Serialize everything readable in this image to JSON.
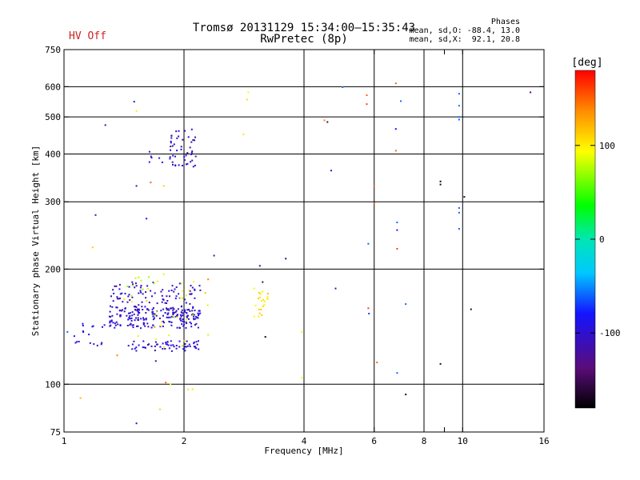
{
  "header": {
    "title_line1": "Tromsø 20131129 15:34:00–15:35:43",
    "title_line2": "RwPretec (8p)",
    "hv_status": "HV Off",
    "phases_title": "Phases",
    "phases_o": "mean, sd,O: -88.4, 13.0",
    "phases_x": "mean, sd,X:  92.1, 20.8"
  },
  "colors": {
    "hv_status": "#cc2222",
    "grid": "#000000"
  },
  "chart_data": {
    "type": "scatter",
    "xlabel": "Frequency [MHz]",
    "ylabel": "Stationary phase Virtual Height [km]",
    "xscale": "log",
    "yscale": "log",
    "xlim": [
      1,
      16
    ],
    "ylim": [
      75,
      750
    ],
    "xticks": [
      1,
      2,
      4,
      6,
      8,
      9,
      10,
      16
    ],
    "xtick_labels": [
      "1",
      "2",
      "4",
      "6",
      "8",
      "",
      "10",
      "16"
    ],
    "yticks": [
      75,
      100,
      200,
      300,
      400,
      500,
      600,
      750
    ],
    "grid_x": [
      2,
      4,
      6,
      8,
      10
    ],
    "grid_y": [
      100,
      200,
      300,
      400,
      500,
      600
    ],
    "colorbar": {
      "label": "[deg]",
      "range": [
        -180,
        180
      ],
      "ticks": [
        100,
        0,
        -100
      ]
    },
    "clusters": [
      {
        "x_range": [
          1.3,
          2.2
        ],
        "y_range": [
          140,
          160
        ],
        "count": 180,
        "phase": -100,
        "spread": 15
      },
      {
        "x_range": [
          1.3,
          2.2
        ],
        "y_range": [
          150,
          185
        ],
        "count": 120,
        "phase": -105,
        "spread": 15
      },
      {
        "x_range": [
          1.45,
          2.2
        ],
        "y_range": [
          122,
          130
        ],
        "count": 60,
        "phase": -100,
        "spread": 12
      },
      {
        "x_range": [
          1.05,
          1.3
        ],
        "y_range": [
          118,
          145
        ],
        "count": 18,
        "phase": -95,
        "spread": 10
      },
      {
        "x_range": [
          1.85,
          2.15
        ],
        "y_range": [
          370,
          470
        ],
        "count": 45,
        "phase": -105,
        "spread": 15
      },
      {
        "x_range": [
          1.6,
          1.9
        ],
        "y_range": [
          380,
          410
        ],
        "count": 10,
        "phase": -100,
        "spread": 10
      },
      {
        "x_range": [
          1.4,
          2.3
        ],
        "y_range": [
          125,
          195
        ],
        "count": 40,
        "phase": 90,
        "spread": 25
      },
      {
        "x_range": [
          3.0,
          3.3
        ],
        "y_range": [
          150,
          175
        ],
        "count": 22,
        "phase": 105,
        "spread": 15
      }
    ],
    "points": [
      {
        "x": 1.02,
        "y": 137,
        "phase": -60
      },
      {
        "x": 1.1,
        "y": 92,
        "phase": 120
      },
      {
        "x": 1.18,
        "y": 228,
        "phase": 110
      },
      {
        "x": 1.2,
        "y": 277,
        "phase": -100
      },
      {
        "x": 1.27,
        "y": 476,
        "phase": -105
      },
      {
        "x": 1.36,
        "y": 119,
        "phase": 140
      },
      {
        "x": 1.5,
        "y": 548,
        "phase": -100
      },
      {
        "x": 1.52,
        "y": 518,
        "phase": 100
      },
      {
        "x": 1.52,
        "y": 330,
        "phase": -110
      },
      {
        "x": 1.52,
        "y": 79,
        "phase": -110
      },
      {
        "x": 1.61,
        "y": 271,
        "phase": -100
      },
      {
        "x": 1.65,
        "y": 337,
        "phase": 150
      },
      {
        "x": 1.7,
        "y": 115,
        "phase": -100
      },
      {
        "x": 1.74,
        "y": 86,
        "phase": 110
      },
      {
        "x": 1.78,
        "y": 330,
        "phase": 110
      },
      {
        "x": 1.8,
        "y": 101,
        "phase": 150
      },
      {
        "x": 1.85,
        "y": 100,
        "phase": 95
      },
      {
        "x": 2.05,
        "y": 97,
        "phase": 105
      },
      {
        "x": 2.1,
        "y": 97,
        "phase": 105
      },
      {
        "x": 2.3,
        "y": 188,
        "phase": 140
      },
      {
        "x": 2.38,
        "y": 217,
        "phase": -100
      },
      {
        "x": 2.82,
        "y": 450,
        "phase": 105
      },
      {
        "x": 2.88,
        "y": 555,
        "phase": 105
      },
      {
        "x": 2.9,
        "y": 580,
        "phase": 90
      },
      {
        "x": 3.0,
        "y": 178,
        "phase": 90
      },
      {
        "x": 3.1,
        "y": 204,
        "phase": -115
      },
      {
        "x": 3.15,
        "y": 185,
        "phase": -150
      },
      {
        "x": 3.2,
        "y": 133,
        "phase": -170
      },
      {
        "x": 3.6,
        "y": 213,
        "phase": -150
      },
      {
        "x": 3.95,
        "y": 137,
        "phase": 95
      },
      {
        "x": 3.95,
        "y": 104,
        "phase": 95
      },
      {
        "x": 4.5,
        "y": 490,
        "phase": 140
      },
      {
        "x": 4.58,
        "y": 485,
        "phase": -150
      },
      {
        "x": 4.68,
        "y": 362,
        "phase": -115
      },
      {
        "x": 4.8,
        "y": 178,
        "phase": -115
      },
      {
        "x": 5.0,
        "y": 598,
        "phase": -55
      },
      {
        "x": 5.75,
        "y": 570,
        "phase": 150
      },
      {
        "x": 5.75,
        "y": 540,
        "phase": 160
      },
      {
        "x": 5.8,
        "y": 233,
        "phase": -60
      },
      {
        "x": 5.8,
        "y": 158,
        "phase": 160
      },
      {
        "x": 5.82,
        "y": 153,
        "phase": -70
      },
      {
        "x": 6.0,
        "y": 330,
        "phase": 150
      },
      {
        "x": 6.0,
        "y": 297,
        "phase": 150
      },
      {
        "x": 6.1,
        "y": 114,
        "phase": 150
      },
      {
        "x": 6.8,
        "y": 612,
        "phase": 150
      },
      {
        "x": 6.8,
        "y": 465,
        "phase": -80
      },
      {
        "x": 6.8,
        "y": 408,
        "phase": 150
      },
      {
        "x": 6.85,
        "y": 265,
        "phase": -60
      },
      {
        "x": 6.85,
        "y": 253,
        "phase": -80
      },
      {
        "x": 6.85,
        "y": 226,
        "phase": 160
      },
      {
        "x": 6.85,
        "y": 107,
        "phase": -60
      },
      {
        "x": 7.0,
        "y": 550,
        "phase": -60
      },
      {
        "x": 7.2,
        "y": 162,
        "phase": -60
      },
      {
        "x": 7.2,
        "y": 94,
        "phase": -170
      },
      {
        "x": 8.8,
        "y": 339,
        "phase": -170
      },
      {
        "x": 8.8,
        "y": 333,
        "phase": -170
      },
      {
        "x": 8.8,
        "y": 113,
        "phase": -160
      },
      {
        "x": 9.8,
        "y": 575,
        "phase": -60
      },
      {
        "x": 9.8,
        "y": 535,
        "phase": -55
      },
      {
        "x": 9.8,
        "y": 500,
        "phase": -55
      },
      {
        "x": 9.8,
        "y": 492,
        "phase": -60
      },
      {
        "x": 9.8,
        "y": 289,
        "phase": -60
      },
      {
        "x": 9.8,
        "y": 281,
        "phase": -60
      },
      {
        "x": 9.8,
        "y": 255,
        "phase": -60
      },
      {
        "x": 10.1,
        "y": 309,
        "phase": -160
      },
      {
        "x": 10.5,
        "y": 157,
        "phase": -160
      },
      {
        "x": 14.8,
        "y": 580,
        "phase": -140
      }
    ]
  }
}
